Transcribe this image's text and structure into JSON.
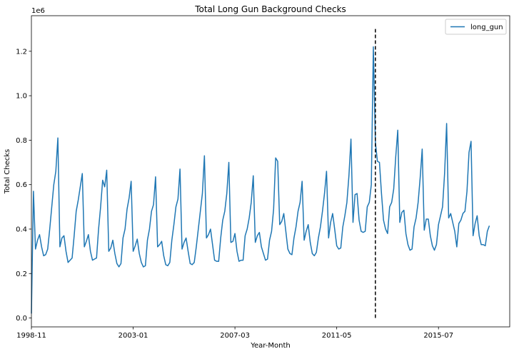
{
  "chart_data": {
    "type": "line",
    "title": "Total Long Gun Background Checks",
    "xlabel": "Year-Month",
    "ylabel": "Total Checks",
    "y_multiplier_label": "1e6",
    "ylim": [
      -0.04,
      1.36
    ],
    "yticks": [
      0.0,
      0.2,
      0.4,
      0.6,
      0.8,
      1.0,
      1.2
    ],
    "ytick_labels": [
      "0.0",
      "0.2",
      "0.4",
      "0.6",
      "0.8",
      "1.0",
      "1.2"
    ],
    "x_start": "1998-11",
    "x_end": "2018-06",
    "xticks": [
      "1998-11",
      "2003-01",
      "2007-03",
      "2011-05",
      "2015-07"
    ],
    "grid": false,
    "legend_position": "top-right",
    "series": [
      {
        "name": "long_gun",
        "color": "#1f77b4",
        "values": [
          0.02,
          0.57,
          0.31,
          0.35,
          0.375,
          0.32,
          0.28,
          0.285,
          0.31,
          0.4,
          0.5,
          0.6,
          0.66,
          0.81,
          0.32,
          0.36,
          0.37,
          0.3,
          0.25,
          0.26,
          0.27,
          0.37,
          0.48,
          0.53,
          0.59,
          0.65,
          0.32,
          0.345,
          0.375,
          0.3,
          0.26,
          0.265,
          0.27,
          0.4,
          0.5,
          0.62,
          0.59,
          0.665,
          0.3,
          0.315,
          0.35,
          0.29,
          0.245,
          0.23,
          0.245,
          0.36,
          0.4,
          0.49,
          0.54,
          0.615,
          0.3,
          0.325,
          0.355,
          0.29,
          0.25,
          0.23,
          0.235,
          0.35,
          0.4,
          0.48,
          0.51,
          0.635,
          0.32,
          0.33,
          0.345,
          0.28,
          0.24,
          0.235,
          0.25,
          0.35,
          0.42,
          0.5,
          0.535,
          0.67,
          0.31,
          0.34,
          0.36,
          0.3,
          0.245,
          0.24,
          0.25,
          0.32,
          0.4,
          0.48,
          0.56,
          0.73,
          0.36,
          0.375,
          0.4,
          0.33,
          0.26,
          0.255,
          0.255,
          0.36,
          0.44,
          0.48,
          0.56,
          0.7,
          0.34,
          0.345,
          0.38,
          0.3,
          0.255,
          0.26,
          0.26,
          0.37,
          0.4,
          0.45,
          0.52,
          0.64,
          0.34,
          0.37,
          0.385,
          0.32,
          0.29,
          0.26,
          0.265,
          0.35,
          0.39,
          0.49,
          0.72,
          0.705,
          0.42,
          0.435,
          0.47,
          0.39,
          0.31,
          0.29,
          0.285,
          0.36,
          0.41,
          0.48,
          0.52,
          0.615,
          0.35,
          0.39,
          0.42,
          0.34,
          0.29,
          0.28,
          0.295,
          0.36,
          0.41,
          0.48,
          0.56,
          0.66,
          0.36,
          0.43,
          0.47,
          0.4,
          0.325,
          0.31,
          0.315,
          0.41,
          0.46,
          0.52,
          0.64,
          0.805,
          0.43,
          0.555,
          0.56,
          0.44,
          0.39,
          0.385,
          0.39,
          0.5,
          0.52,
          0.6,
          1.22,
          0.79,
          0.705,
          0.7,
          0.56,
          0.44,
          0.4,
          0.38,
          0.5,
          0.52,
          0.58,
          0.725,
          0.845,
          0.43,
          0.475,
          0.485,
          0.38,
          0.33,
          0.305,
          0.31,
          0.41,
          0.45,
          0.52,
          0.63,
          0.76,
          0.395,
          0.445,
          0.445,
          0.37,
          0.325,
          0.305,
          0.33,
          0.42,
          0.46,
          0.5,
          0.65,
          0.875,
          0.45,
          0.47,
          0.43,
          0.39,
          0.32,
          0.425,
          0.44,
          0.47,
          0.48,
          0.57,
          0.745,
          0.795,
          0.37,
          0.425,
          0.46,
          0.37,
          0.33,
          0.33,
          0.325,
          0.39,
          0.415
        ]
      }
    ],
    "annotations": [
      {
        "type": "vline",
        "x": "2012-12",
        "y_from": 0.0,
        "y_to": 1.3,
        "style": "dashed",
        "color": "#000000"
      }
    ]
  }
}
